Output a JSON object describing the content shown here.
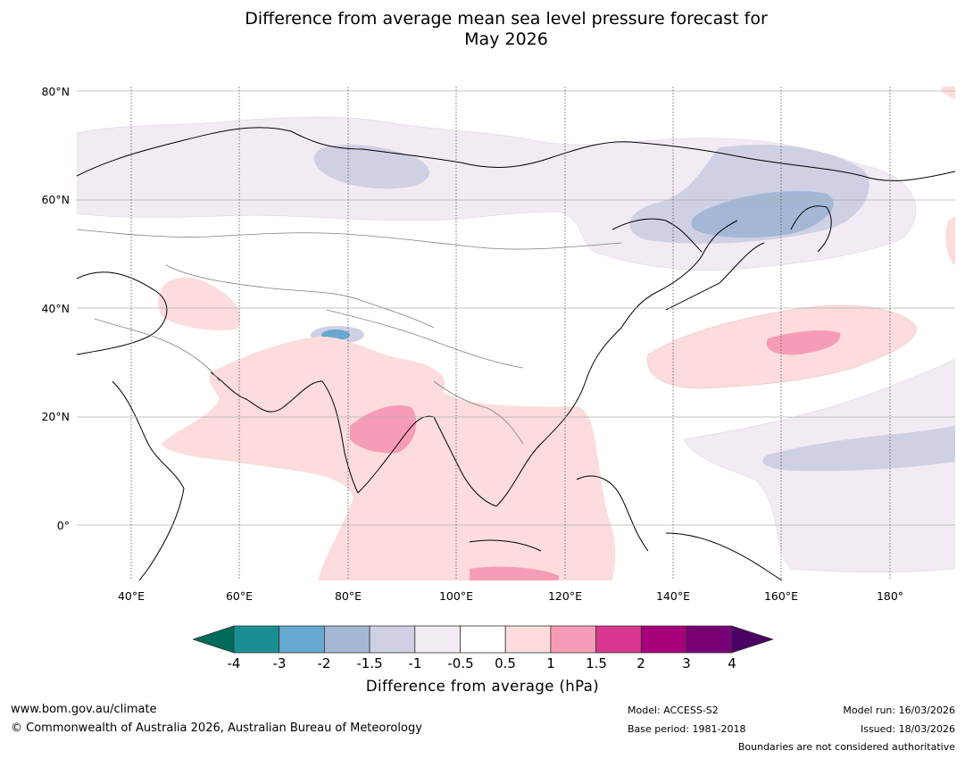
{
  "title": {
    "line1": "Difference from average mean sea level pressure forecast for",
    "line2": "May 2026"
  },
  "map": {
    "lat_labels": [
      "80°N",
      "60°N",
      "40°N",
      "20°N",
      "0°"
    ],
    "lon_labels": [
      "40°E",
      "60°E",
      "80°E",
      "100°E",
      "120°E",
      "140°E",
      "160°E",
      "180°"
    ],
    "extent": {
      "lon": [
        30,
        192
      ],
      "lat": [
        -10,
        80
      ]
    }
  },
  "colorbar": {
    "label": "Difference from average (hPa)",
    "ticks": [
      "-4",
      "-3",
      "-2",
      "-1.5",
      "-1",
      "-0.5",
      "0.5",
      "1",
      "1.5",
      "2",
      "3",
      "4"
    ],
    "colors": [
      "#1a8f93",
      "#67a8d0",
      "#a4b8d6",
      "#cfd0e4",
      "#f2ebf4",
      "#ffffff",
      "#fcdcdc",
      "#f79cb7",
      "#d9378f",
      "#a8007a",
      "#7a0078"
    ],
    "under_color": "#006b5b",
    "over_color": "#4b0066"
  },
  "footer": {
    "url": "www.bom.gov.au/climate",
    "copyright": "© Commonwealth of Australia 2026, Australian Bureau of Meteorology",
    "model": "Model: ACCESS-S2",
    "base_period": "Base period: 1981-2018",
    "model_run": "Model run: 16/03/2026",
    "issued": "Issued: 18/03/2026",
    "disclaimer": "Boundaries are not considered authoritative"
  }
}
